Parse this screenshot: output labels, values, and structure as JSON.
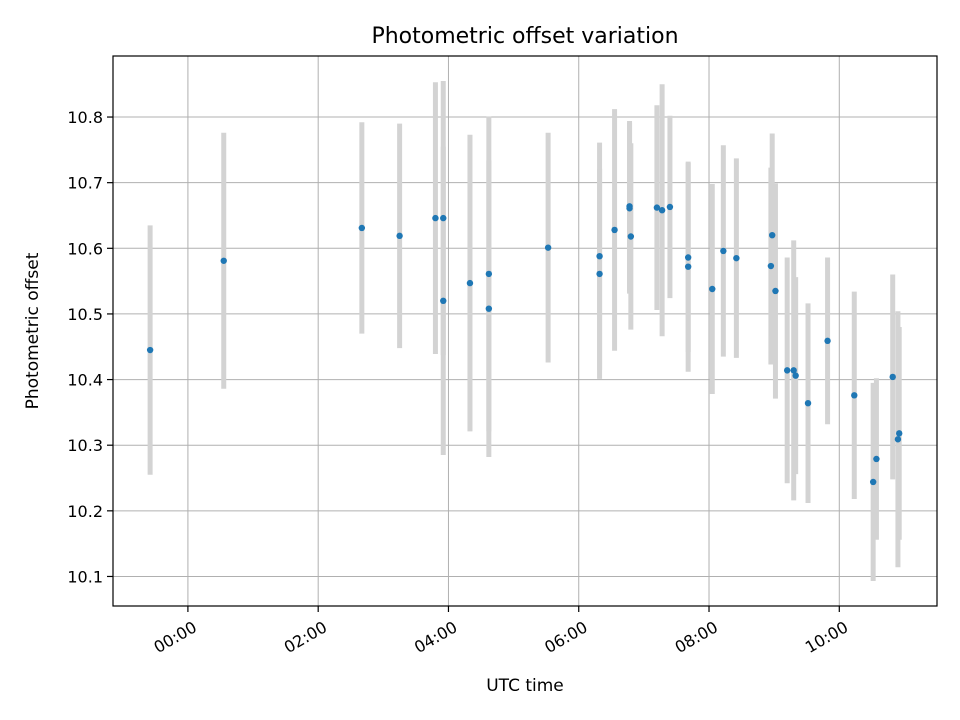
{
  "chart_data": {
    "type": "scatter",
    "title": "Photometric offset variation",
    "xlabel": "UTC time",
    "ylabel": "Photometric offset",
    "xlim_hours": [
      -1.15,
      11.5
    ],
    "ylim": [
      10.055,
      10.893
    ],
    "grid": true,
    "x_tick_values_hours": [
      0,
      2,
      4,
      6,
      8,
      10
    ],
    "x_tick_labels": [
      "00:00",
      "02:00",
      "04:00",
      "06:00",
      "08:00",
      "10:00"
    ],
    "y_ticks": [
      10.1,
      10.2,
      10.3,
      10.4,
      10.5,
      10.6,
      10.7,
      10.8
    ],
    "y_tick_labels": [
      "10.1",
      "10.2",
      "10.3",
      "10.4",
      "10.5",
      "10.6",
      "10.7",
      "10.8"
    ],
    "marker_color": "#1f77b4",
    "errorbar_color": "#d3d3d3",
    "points": [
      {
        "x": -0.58,
        "y": 10.445,
        "yerr": 0.19
      },
      {
        "x": 0.55,
        "y": 10.581,
        "yerr": 0.195
      },
      {
        "x": 2.67,
        "y": 10.631,
        "yerr": 0.161
      },
      {
        "x": 3.25,
        "y": 10.619,
        "yerr": 0.171
      },
      {
        "x": 3.8,
        "y": 10.646,
        "yerr": 0.207
      },
      {
        "x": 3.92,
        "y": 10.646,
        "yerr": 0.209
      },
      {
        "x": 3.92,
        "y": 10.52,
        "yerr": 0.235
      },
      {
        "x": 4.33,
        "y": 10.547,
        "yerr": 0.226
      },
      {
        "x": 4.62,
        "y": 10.561,
        "yerr": 0.24
      },
      {
        "x": 4.62,
        "y": 10.508,
        "yerr": 0.226
      },
      {
        "x": 5.53,
        "y": 10.601,
        "yerr": 0.175
      },
      {
        "x": 6.32,
        "y": 10.588,
        "yerr": 0.173
      },
      {
        "x": 6.32,
        "y": 10.561,
        "yerr": 0.16
      },
      {
        "x": 6.55,
        "y": 10.628,
        "yerr": 0.184
      },
      {
        "x": 6.78,
        "y": 10.664,
        "yerr": 0.13
      },
      {
        "x": 6.78,
        "y": 10.661,
        "yerr": 0.13
      },
      {
        "x": 6.8,
        "y": 10.618,
        "yerr": 0.142
      },
      {
        "x": 7.2,
        "y": 10.662,
        "yerr": 0.156
      },
      {
        "x": 7.28,
        "y": 10.658,
        "yerr": 0.192
      },
      {
        "x": 7.4,
        "y": 10.663,
        "yerr": 0.139
      },
      {
        "x": 7.68,
        "y": 10.586,
        "yerr": 0.144
      },
      {
        "x": 7.68,
        "y": 10.572,
        "yerr": 0.16
      },
      {
        "x": 8.05,
        "y": 10.538,
        "yerr": 0.16
      },
      {
        "x": 8.22,
        "y": 10.596,
        "yerr": 0.161
      },
      {
        "x": 8.42,
        "y": 10.585,
        "yerr": 0.152
      },
      {
        "x": 8.95,
        "y": 10.573,
        "yerr": 0.15
      },
      {
        "x": 8.97,
        "y": 10.62,
        "yerr": 0.155
      },
      {
        "x": 9.02,
        "y": 10.535,
        "yerr": 0.164
      },
      {
        "x": 9.2,
        "y": 10.414,
        "yerr": 0.172
      },
      {
        "x": 9.3,
        "y": 10.414,
        "yerr": 0.198
      },
      {
        "x": 9.33,
        "y": 10.406,
        "yerr": 0.15
      },
      {
        "x": 9.52,
        "y": 10.364,
        "yerr": 0.152
      },
      {
        "x": 9.82,
        "y": 10.459,
        "yerr": 0.127
      },
      {
        "x": 10.23,
        "y": 10.376,
        "yerr": 0.158
      },
      {
        "x": 10.52,
        "y": 10.244,
        "yerr": 0.151
      },
      {
        "x": 10.57,
        "y": 10.279,
        "yerr": 0.123
      },
      {
        "x": 10.82,
        "y": 10.404,
        "yerr": 0.156
      },
      {
        "x": 10.9,
        "y": 10.309,
        "yerr": 0.195
      },
      {
        "x": 10.92,
        "y": 10.318,
        "yerr": 0.162
      }
    ]
  }
}
